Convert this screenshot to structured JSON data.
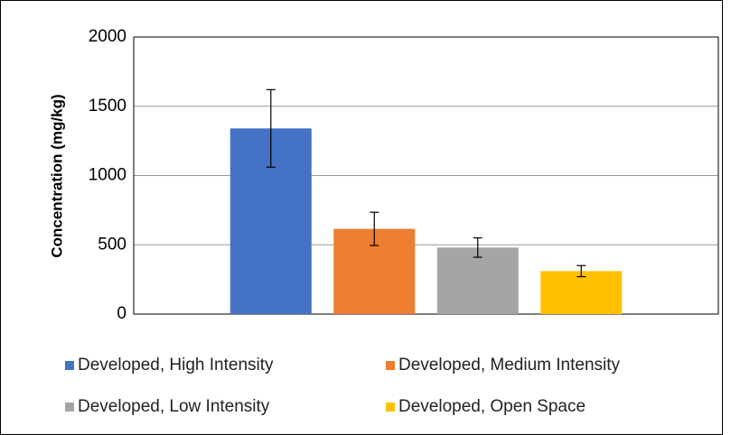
{
  "chart_data": {
    "type": "bar",
    "y_label": "Concentration (mg/kg)",
    "categories": [
      null
    ],
    "series": [
      {
        "name": "Developed, High Intensity",
        "color": "#4472c4",
        "values": [
          1340
        ],
        "errors": [
          280
        ]
      },
      {
        "name": "Developed, Medium Intensity",
        "color": "#ed7d31",
        "values": [
          615
        ],
        "errors": [
          120
        ]
      },
      {
        "name": "Developed, Low Intensity",
        "color": "#a5a5a5",
        "values": [
          480
        ],
        "errors": [
          70
        ]
      },
      {
        "name": "Developed, Open Space",
        "color": "#ffc000",
        "values": [
          310
        ],
        "errors": [
          40
        ]
      }
    ],
    "ylim": [
      0,
      2000
    ],
    "yticks": [
      0,
      500,
      1000,
      1500,
      2000
    ],
    "grid": true,
    "legend": "bottom"
  }
}
